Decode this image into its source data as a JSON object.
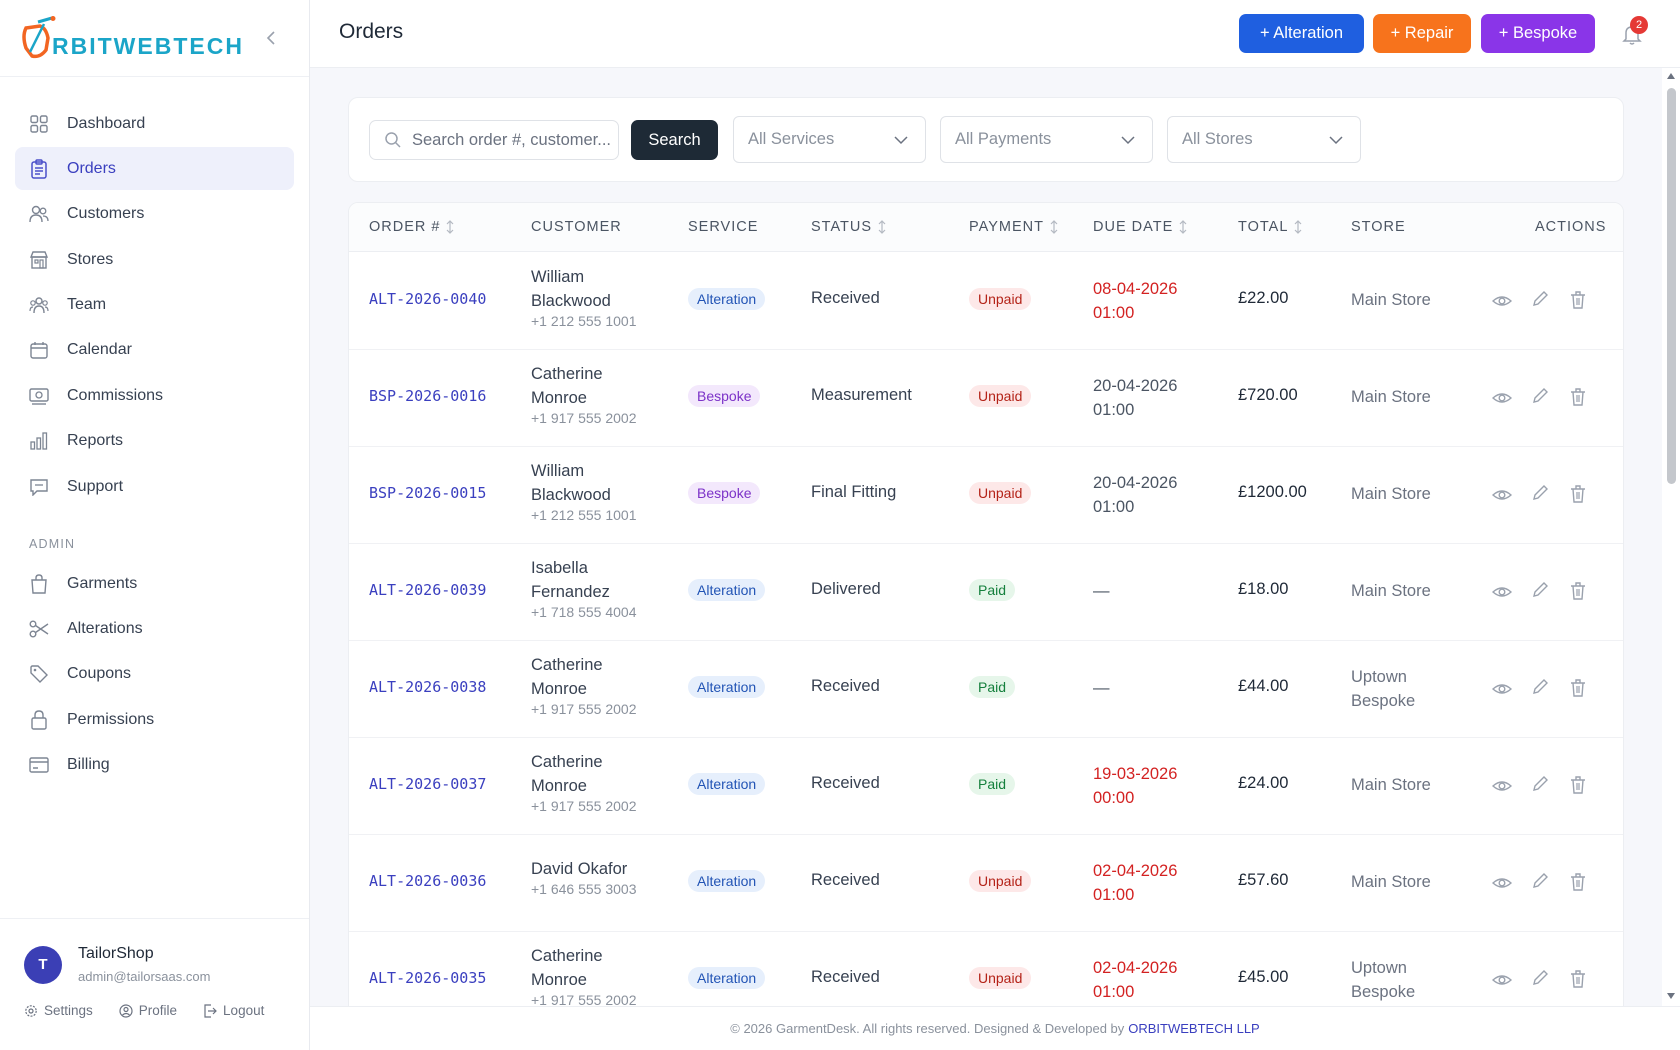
{
  "brand": {
    "logo_text": "RBITWEBTECH",
    "logo_letter": "O"
  },
  "sidebar": {
    "main_items": [
      {
        "label": "Dashboard",
        "icon": "grid-icon",
        "active": false
      },
      {
        "label": "Orders",
        "icon": "clipboard-icon",
        "active": true
      },
      {
        "label": "Customers",
        "icon": "users-icon",
        "active": false
      },
      {
        "label": "Stores",
        "icon": "store-icon",
        "active": false
      },
      {
        "label": "Team",
        "icon": "team-icon",
        "active": false
      },
      {
        "label": "Calendar",
        "icon": "calendar-icon",
        "active": false
      },
      {
        "label": "Commissions",
        "icon": "money-icon",
        "active": false
      },
      {
        "label": "Reports",
        "icon": "bar-chart-icon",
        "active": false
      },
      {
        "label": "Support",
        "icon": "chat-icon",
        "active": false
      }
    ],
    "admin_label": "ADMIN",
    "admin_items": [
      {
        "label": "Garments",
        "icon": "bag-icon"
      },
      {
        "label": "Alterations",
        "icon": "scissors-icon"
      },
      {
        "label": "Coupons",
        "icon": "tag-icon"
      },
      {
        "label": "Permissions",
        "icon": "lock-icon"
      },
      {
        "label": "Billing",
        "icon": "card-icon"
      }
    ],
    "user": {
      "initial": "T",
      "name": "TailorShop",
      "email": "admin@tailorsaas.com",
      "links": {
        "settings": "Settings",
        "profile": "Profile",
        "logout": "Logout"
      }
    }
  },
  "header": {
    "title": "Orders",
    "buttons": {
      "alteration": "+ Alteration",
      "repair": "+ Repair",
      "bespoke": "+ Bespoke"
    },
    "notification_count": "2"
  },
  "filters": {
    "search_placeholder": "Search order #, customer...",
    "search_button": "Search",
    "services": "All Services",
    "payments": "All Payments",
    "stores": "All Stores"
  },
  "table": {
    "headers": {
      "order": "ORDER #",
      "customer": "CUSTOMER",
      "service": "SERVICE",
      "status": "STATUS",
      "payment": "PAYMENT",
      "due_date": "DUE DATE",
      "total": "TOTAL",
      "store": "STORE",
      "actions": "ACTIONS"
    },
    "rows": [
      {
        "order": "ALT-2026-0040",
        "name1": "William",
        "name2": "Blackwood",
        "phone": "+1 212 555 1001",
        "service": "Alteration",
        "status": "Received",
        "payment": "Unpaid",
        "due1": "08-04-2026",
        "due2": "01:00",
        "due_overdue": true,
        "total": "£22.00",
        "store1": "Main Store",
        "store2": ""
      },
      {
        "order": "BSP-2026-0016",
        "name1": "Catherine",
        "name2": "Monroe",
        "phone": "+1 917 555 2002",
        "service": "Bespoke",
        "status": "Measurement",
        "payment": "Unpaid",
        "due1": "20-04-2026",
        "due2": "01:00",
        "due_overdue": false,
        "total": "£720.00",
        "store1": "Main Store",
        "store2": ""
      },
      {
        "order": "BSP-2026-0015",
        "name1": "William",
        "name2": "Blackwood",
        "phone": "+1 212 555 1001",
        "service": "Bespoke",
        "status": "Final Fitting",
        "payment": "Unpaid",
        "due1": "20-04-2026",
        "due2": "01:00",
        "due_overdue": false,
        "total": "£1200.00",
        "store1": "Main Store",
        "store2": ""
      },
      {
        "order": "ALT-2026-0039",
        "name1": "Isabella",
        "name2": "Fernandez",
        "phone": "+1 718 555 4004",
        "service": "Alteration",
        "status": "Delivered",
        "payment": "Paid",
        "due1": "—",
        "due2": "",
        "due_overdue": false,
        "total": "£18.00",
        "store1": "Main Store",
        "store2": ""
      },
      {
        "order": "ALT-2026-0038",
        "name1": "Catherine",
        "name2": "Monroe",
        "phone": "+1 917 555 2002",
        "service": "Alteration",
        "status": "Received",
        "payment": "Paid",
        "due1": "—",
        "due2": "",
        "due_overdue": false,
        "total": "£44.00",
        "store1": "Uptown",
        "store2": "Bespoke"
      },
      {
        "order": "ALT-2026-0037",
        "name1": "Catherine",
        "name2": "Monroe",
        "phone": "+1 917 555 2002",
        "service": "Alteration",
        "status": "Received",
        "payment": "Paid",
        "due1": "19-03-2026",
        "due2": "00:00",
        "due_overdue": true,
        "total": "£24.00",
        "store1": "Main Store",
        "store2": ""
      },
      {
        "order": "ALT-2026-0036",
        "name1": "David Okafor",
        "name2": "",
        "phone": "+1 646 555 3003",
        "service": "Alteration",
        "status": "Received",
        "payment": "Unpaid",
        "due1": "02-04-2026",
        "due2": "01:00",
        "due_overdue": true,
        "total": "£57.60",
        "store1": "Main Store",
        "store2": ""
      },
      {
        "order": "ALT-2026-0035",
        "name1": "Catherine",
        "name2": "Monroe",
        "phone": "+1 917 555 2002",
        "service": "Alteration",
        "status": "Received",
        "payment": "Unpaid",
        "due1": "02-04-2026",
        "due2": "01:00",
        "due_overdue": true,
        "total": "£45.00",
        "store1": "Uptown",
        "store2": "Bespoke"
      }
    ]
  },
  "footer": {
    "text": "© 2026 GarmentDesk. All rights reserved. Designed & Developed by",
    "link": "ORBITWEBTECH LLP"
  },
  "colors": {
    "primary": "#3a3fbf",
    "alteration_btn": "#1f5fe0",
    "repair_btn": "#f7731c",
    "bespoke_btn": "#8a35e8",
    "overdue": "#d32222"
  }
}
